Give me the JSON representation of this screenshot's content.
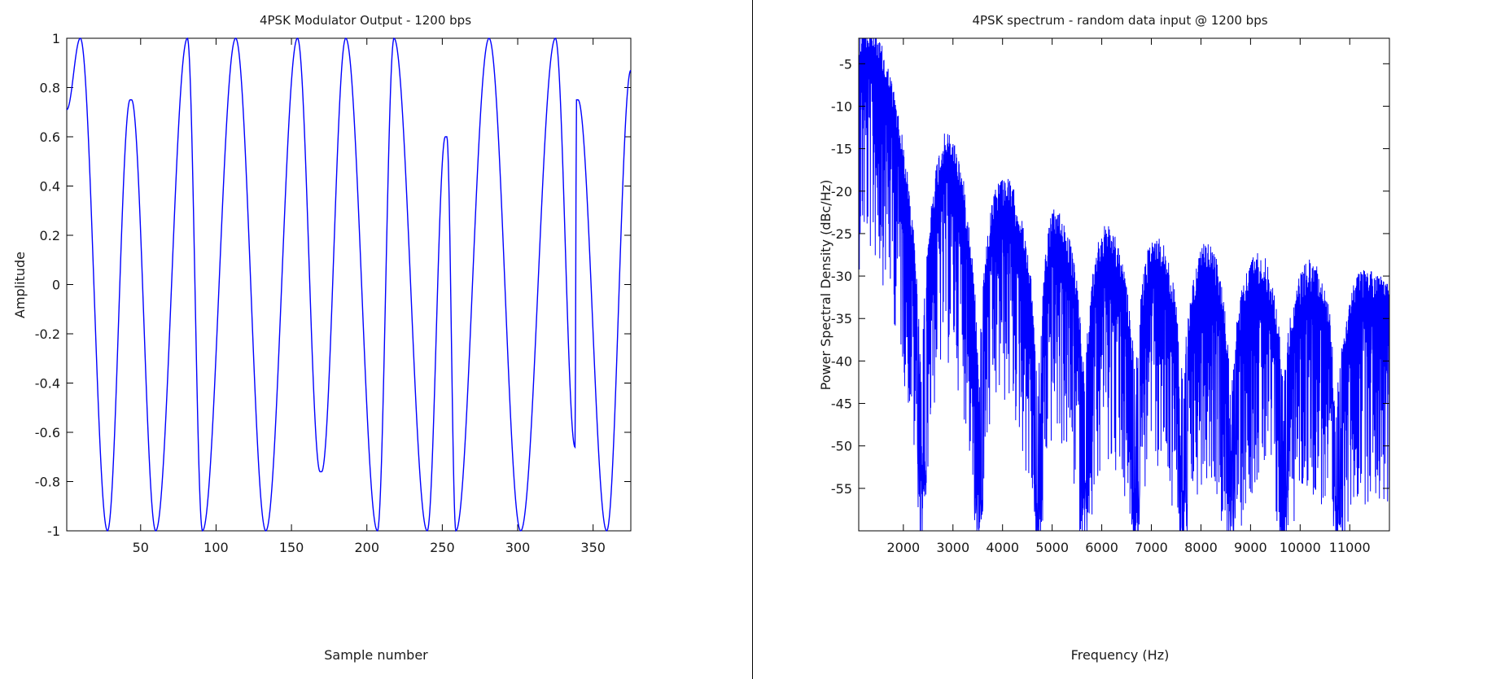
{
  "chart_data": [
    {
      "type": "line",
      "title": "4PSK Modulator Output - 1200 bps",
      "xlabel": "Sample number",
      "ylabel": "Amplitude",
      "xlim": [
        1,
        375
      ],
      "ylim": [
        -1,
        1
      ],
      "xticks": [
        50,
        100,
        150,
        200,
        250,
        300,
        350
      ],
      "yticks": [
        1,
        0.8,
        0.6,
        0.4,
        0.2,
        0,
        -0.2,
        -0.4,
        -0.6,
        -0.8,
        -1
      ],
      "ytick_labels": [
        "1",
        "0.8",
        "0.6",
        "0.4",
        "0.2",
        "0",
        "-0.2",
        "-0.4",
        "-0.6",
        "-0.8",
        "-1"
      ],
      "grid": false,
      "series": [
        {
          "color": "#0000ff",
          "x": [
            1,
            10,
            28,
            43,
            44,
            60,
            81,
            91,
            113,
            133,
            154,
            169,
            170,
            186,
            207,
            218,
            240,
            252,
            253,
            259,
            281,
            302,
            325,
            338,
            339,
            340,
            359,
            375
          ],
          "y": [
            0.71,
            1.0,
            -1.0,
            0.75,
            0.75,
            -1.0,
            1.0,
            -1.0,
            1.0,
            -1.0,
            1.0,
            -0.76,
            -0.76,
            1.0,
            -1.0,
            1.0,
            -1.0,
            0.6,
            0.6,
            -1.0,
            1.0,
            -1.0,
            1.0,
            -0.66,
            0.75,
            0.75,
            -1.0,
            0.87
          ]
        }
      ]
    },
    {
      "type": "line",
      "title": "4PSK spectrum - random data input @ 1200 bps",
      "xlabel": "Frequency (Hz)",
      "ylabel": "Power Spectral Density (dBc/Hz)",
      "xlim": [
        1100,
        11800
      ],
      "ylim": [
        -60,
        -2
      ],
      "xticks": [
        2000,
        3000,
        4000,
        5000,
        6000,
        7000,
        8000,
        9000,
        10000,
        11000
      ],
      "yticks": [
        -5,
        -10,
        -15,
        -20,
        -25,
        -30,
        -35,
        -40,
        -45,
        -50,
        -55
      ],
      "grid": false,
      "series": [
        {
          "color": "#0000ff",
          "lobe_centers_hz": [
            1200,
            2880,
            4000,
            5060,
            6080,
            7080,
            8120,
            9170,
            10220,
            11330
          ],
          "lobe_peaks_db": [
            -2,
            -15,
            -20,
            -24,
            -26,
            -27,
            -28,
            -29,
            -30,
            -31
          ],
          "null_frequencies_hz": [
            2370,
            3520,
            4720,
            5660,
            6680,
            7640,
            8600,
            9660,
            10740
          ],
          "null_floor_db": [
            -56,
            -60,
            -60,
            -60,
            -60,
            -60,
            -60,
            -60,
            -60
          ]
        }
      ]
    }
  ]
}
